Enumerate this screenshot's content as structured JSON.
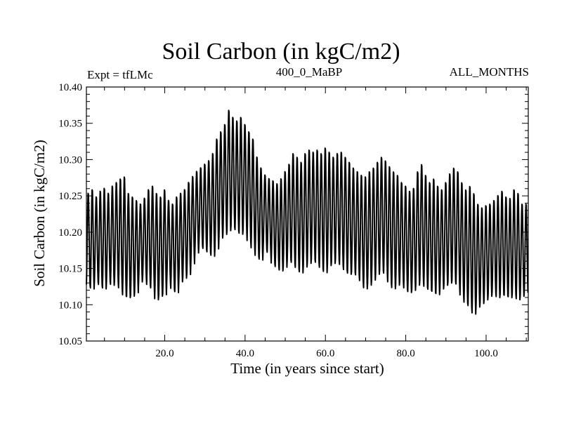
{
  "chart_data": {
    "type": "line",
    "title": "Soil Carbon (in kgC/m2)",
    "experiment_label": "Expt = tfLMc",
    "subtitle": "400_0_MaBP",
    "period_label": "ALL_MONTHS",
    "xlabel": "Time (in years since start)",
    "ylabel": "Soil Carbon (in kgC/m2)",
    "xlim": [
      0.5,
      110.5
    ],
    "ylim": [
      10.05,
      10.4
    ],
    "x_ticks": [
      20.0,
      40.0,
      60.0,
      80.0,
      100.0
    ],
    "x_tick_labels": [
      "20.0",
      "40.0",
      "60.0",
      "80.0",
      "100.0"
    ],
    "y_ticks": [
      10.05,
      10.1,
      10.15,
      10.2,
      10.25,
      10.3,
      10.35,
      10.4
    ],
    "y_tick_labels": [
      "10.05",
      "10.10",
      "10.15",
      "10.20",
      "10.25",
      "10.30",
      "10.35",
      "10.40"
    ],
    "grid": false,
    "line_color": "#000000",
    "series": [
      {
        "name": "Soil Carbon",
        "sampling": "monthly, seasonal cycle; values are per-year maximum and minimum",
        "years": [
          1,
          2,
          3,
          4,
          5,
          6,
          7,
          8,
          9,
          10,
          11,
          12,
          13,
          14,
          15,
          16,
          17,
          18,
          19,
          20,
          21,
          22,
          23,
          24,
          25,
          26,
          27,
          28,
          29,
          30,
          31,
          32,
          33,
          34,
          35,
          36,
          37,
          38,
          39,
          40,
          41,
          42,
          43,
          44,
          45,
          46,
          47,
          48,
          49,
          50,
          51,
          52,
          53,
          54,
          55,
          56,
          57,
          58,
          59,
          60,
          61,
          62,
          63,
          64,
          65,
          66,
          67,
          68,
          69,
          70,
          71,
          72,
          73,
          74,
          75,
          76,
          77,
          78,
          79,
          80,
          81,
          82,
          83,
          84,
          85,
          86,
          87,
          88,
          89,
          90,
          91,
          92,
          93,
          94,
          95,
          96,
          97,
          98,
          99,
          100,
          101,
          102,
          103,
          104,
          105,
          106,
          107,
          108,
          109,
          110
        ],
        "annual_max": [
          10.255,
          10.26,
          10.25,
          10.258,
          10.262,
          10.255,
          10.265,
          10.27,
          10.275,
          10.278,
          10.255,
          10.25,
          10.245,
          10.24,
          10.248,
          10.26,
          10.265,
          10.255,
          10.25,
          10.26,
          10.245,
          10.24,
          10.25,
          10.255,
          10.26,
          10.27,
          10.278,
          10.285,
          10.29,
          10.295,
          10.3,
          10.31,
          10.33,
          10.34,
          10.35,
          10.37,
          10.36,
          10.355,
          10.36,
          10.35,
          10.34,
          10.33,
          10.305,
          10.29,
          10.28,
          10.275,
          10.272,
          10.268,
          10.275,
          10.285,
          10.295,
          10.31,
          10.305,
          10.298,
          10.31,
          10.315,
          10.312,
          10.315,
          10.31,
          10.318,
          10.312,
          10.305,
          10.31,
          10.312,
          10.305,
          10.298,
          10.29,
          10.285,
          10.28,
          10.278,
          10.285,
          10.29,
          10.298,
          10.305,
          10.3,
          10.292,
          10.285,
          10.28,
          10.27,
          10.265,
          10.258,
          10.262,
          10.285,
          10.295,
          10.28,
          10.27,
          10.275,
          10.265,
          10.26,
          10.27,
          10.282,
          10.29,
          10.285,
          10.27,
          10.26,
          10.265,
          10.255,
          10.24,
          10.235,
          10.238,
          10.24,
          10.245,
          10.252,
          10.258,
          10.25,
          10.248,
          10.26,
          10.255,
          10.24,
          10.24
        ],
        "annual_min": [
          10.125,
          10.12,
          10.13,
          10.125,
          10.12,
          10.13,
          10.125,
          10.13,
          10.12,
          10.11,
          10.108,
          10.11,
          10.115,
          10.13,
          10.135,
          10.125,
          10.12,
          10.105,
          10.11,
          10.112,
          10.13,
          10.12,
          10.115,
          10.13,
          10.135,
          10.14,
          10.155,
          10.17,
          10.18,
          10.175,
          10.17,
          10.165,
          10.175,
          10.19,
          10.195,
          10.2,
          10.205,
          10.2,
          10.195,
          10.2,
          10.185,
          10.175,
          10.165,
          10.16,
          10.175,
          10.17,
          10.155,
          10.15,
          10.145,
          10.15,
          10.16,
          10.155,
          10.148,
          10.142,
          10.15,
          10.155,
          10.16,
          10.155,
          10.148,
          10.142,
          10.152,
          10.155,
          10.16,
          10.152,
          10.145,
          10.14,
          10.142,
          10.138,
          10.13,
          10.12,
          10.125,
          10.132,
          10.14,
          10.145,
          10.14,
          10.128,
          10.12,
          10.125,
          10.13,
          10.12,
          10.115,
          10.118,
          10.125,
          10.13,
          10.122,
          10.118,
          10.115,
          10.112,
          10.12,
          10.125,
          10.128,
          10.13,
          10.125,
          10.11,
          10.1,
          10.095,
          10.085,
          10.095,
          10.1,
          10.105,
          10.11,
          10.115,
          10.108,
          10.112,
          10.11,
          10.108,
          10.112,
          10.105,
          10.11,
          10.115
        ]
      }
    ]
  }
}
